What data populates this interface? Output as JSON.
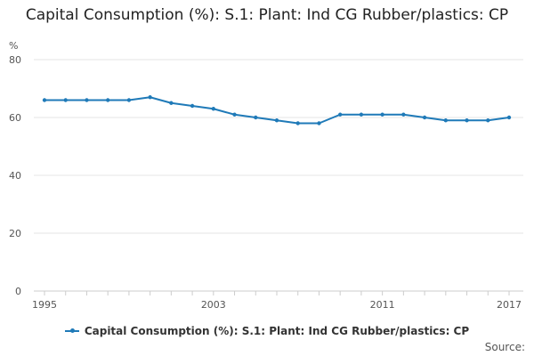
{
  "chart_data": {
    "type": "line",
    "title": "Capital Consumption (%): S.1: Plant: Ind CG Rubber/plastics: CP",
    "ylabel": "%",
    "xlabel": "",
    "ylim": [
      0,
      80
    ],
    "yticks": [
      "0",
      "20",
      "40",
      "60",
      "80"
    ],
    "x_labeled": [
      "1995",
      "2003",
      "2011",
      "2017"
    ],
    "x": [
      1995,
      1996,
      1997,
      1998,
      1999,
      2000,
      2001,
      2002,
      2003,
      2004,
      2005,
      2006,
      2007,
      2008,
      2009,
      2010,
      2011,
      2012,
      2013,
      2014,
      2015,
      2016,
      2017
    ],
    "series": [
      {
        "name": "Capital Consumption (%): S.1: Plant: Ind CG Rubber/plastics: CP",
        "color": "#1f7ab8",
        "values": [
          66,
          66,
          66,
          66,
          66,
          67,
          65,
          64,
          63,
          61,
          60,
          59,
          58,
          58,
          61,
          61,
          61,
          61,
          60,
          59,
          59,
          59,
          60
        ]
      }
    ],
    "grid": true,
    "legend": "bottom-center"
  },
  "footer": {
    "source_label": "Source:"
  }
}
